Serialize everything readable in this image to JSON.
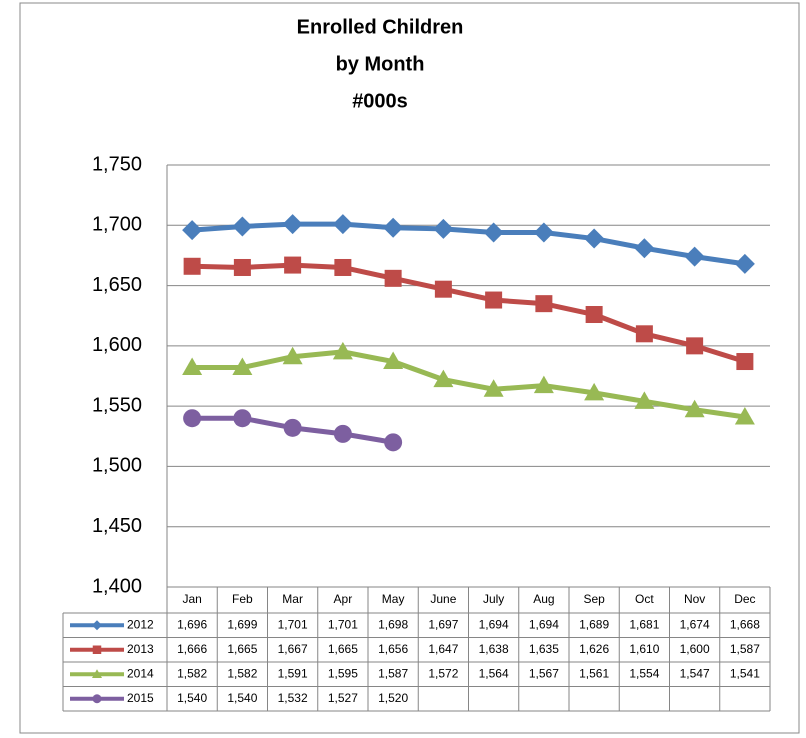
{
  "chart_data": {
    "type": "line",
    "title": [
      "Enrolled Children",
      "by Month",
      "#000s"
    ],
    "categories": [
      "Jan",
      "Feb",
      "Mar",
      "Apr",
      "May",
      "June",
      "July",
      "Aug",
      "Sep",
      "Oct",
      "Nov",
      "Dec"
    ],
    "series": [
      {
        "name": "2012",
        "color": "#4a7ebb",
        "marker": "diamond",
        "values": [
          1696,
          1699,
          1701,
          1701,
          1698,
          1697,
          1694,
          1694,
          1689,
          1681,
          1674,
          1668
        ],
        "value_labels": [
          "1,696",
          "1,699",
          "1,701",
          "1,701",
          "1,698",
          "1,697",
          "1,694",
          "1,694",
          "1,689",
          "1,681",
          "1,674",
          "1,668"
        ]
      },
      {
        "name": "2013",
        "color": "#be4b48",
        "marker": "square",
        "values": [
          1666,
          1665,
          1667,
          1665,
          1656,
          1647,
          1638,
          1635,
          1626,
          1610,
          1600,
          1587
        ],
        "value_labels": [
          "1,666",
          "1,665",
          "1,667",
          "1,665",
          "1,656",
          "1,647",
          "1,638",
          "1,635",
          "1,626",
          "1,610",
          "1,600",
          "1,587"
        ]
      },
      {
        "name": "2014",
        "color": "#98b954",
        "marker": "triangle",
        "values": [
          1582,
          1582,
          1591,
          1595,
          1587,
          1572,
          1564,
          1567,
          1561,
          1554,
          1547,
          1541
        ],
        "value_labels": [
          "1,582",
          "1,582",
          "1,591",
          "1,595",
          "1,587",
          "1,572",
          "1,564",
          "1,567",
          "1,561",
          "1,554",
          "1,547",
          "1,541"
        ]
      },
      {
        "name": "2015",
        "color": "#7d5fa0",
        "marker": "circle",
        "values": [
          1540,
          1540,
          1532,
          1527,
          1520,
          null,
          null,
          null,
          null,
          null,
          null,
          null
        ],
        "value_labels": [
          "1,540",
          "1,540",
          "1,532",
          "1,527",
          "1,520",
          null,
          null,
          null,
          null,
          null,
          null,
          null
        ]
      }
    ],
    "ylim": [
      1400,
      1750
    ],
    "yticks": [
      {
        "value": 1400,
        "label": "1,400"
      },
      {
        "value": 1450,
        "label": "1,450"
      },
      {
        "value": 1500,
        "label": "1,500"
      },
      {
        "value": 1550,
        "label": "1,550"
      },
      {
        "value": 1600,
        "label": "1,600"
      },
      {
        "value": 1650,
        "label": "1,650"
      },
      {
        "value": 1700,
        "label": "1,700"
      },
      {
        "value": 1750,
        "label": "1,750"
      }
    ],
    "grid": true
  }
}
